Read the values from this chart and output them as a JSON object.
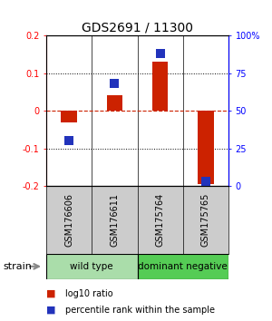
{
  "title": "GDS2691 / 11300",
  "samples": [
    "GSM176606",
    "GSM176611",
    "GSM175764",
    "GSM175765"
  ],
  "log10_ratio": [
    -0.03,
    0.04,
    0.13,
    -0.195
  ],
  "percentile_rank": [
    30,
    68,
    88,
    3
  ],
  "ylim_left": [
    -0.2,
    0.2
  ],
  "ylim_right": [
    0,
    100
  ],
  "yticks_left": [
    -0.2,
    -0.1,
    0,
    0.1,
    0.2
  ],
  "yticks_right": [
    0,
    25,
    50,
    75,
    100
  ],
  "ytick_labels_left": [
    "-0.2",
    "-0.1",
    "0",
    "0.1",
    "0.2"
  ],
  "ytick_labels_right": [
    "0",
    "25",
    "50",
    "75",
    "100%"
  ],
  "hlines_y": [
    -0.1,
    0.0,
    0.1
  ],
  "bar_color": "#cc2200",
  "dot_color": "#2233bb",
  "groups": [
    {
      "label": "wild type",
      "indices": [
        0,
        1
      ],
      "color": "#aaddaa"
    },
    {
      "label": "dominant negative",
      "indices": [
        2,
        3
      ],
      "color": "#55cc55"
    }
  ],
  "strain_label": "strain",
  "legend_bar_label": "log10 ratio",
  "legend_dot_label": "percentile rank within the sample",
  "bar_width": 0.35,
  "dot_size": 55,
  "background_color": "#ffffff",
  "sample_bg": "#cccccc",
  "title_fontsize": 10,
  "axis_tick_fontsize": 7,
  "sample_label_fontsize": 7,
  "group_label_fontsize": 7.5,
  "legend_fontsize": 7,
  "strain_fontsize": 8
}
